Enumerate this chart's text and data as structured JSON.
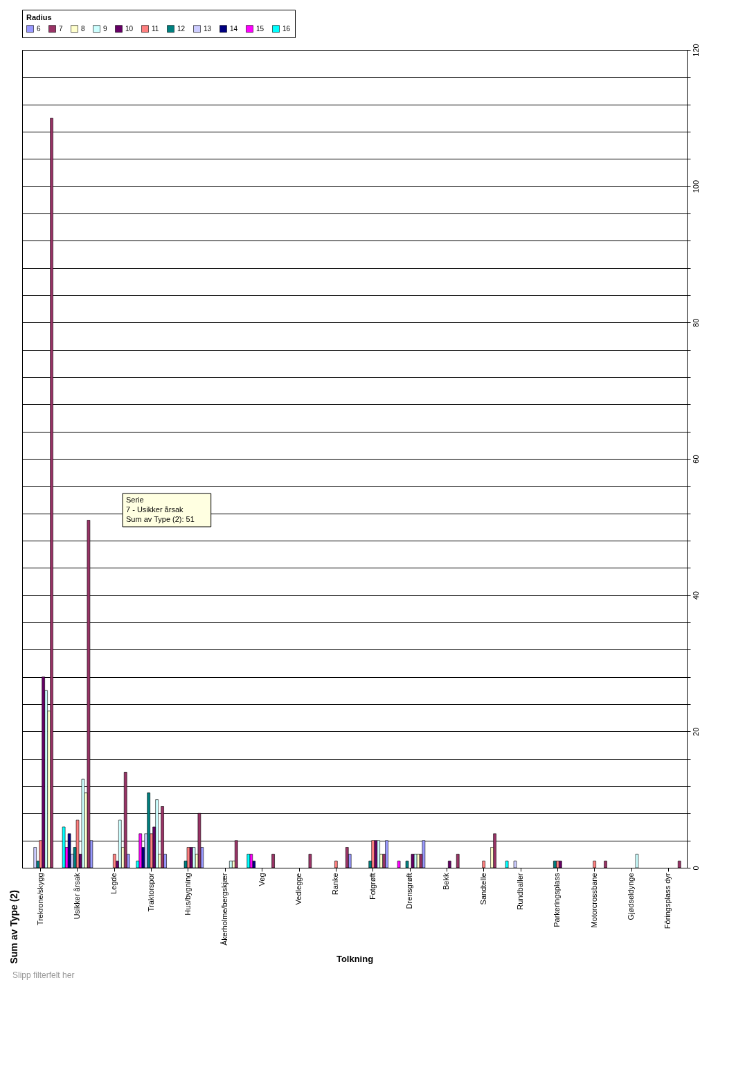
{
  "chart_data": {
    "type": "bar",
    "title": "Sum av Type (2)",
    "xlabel": "Tolkning",
    "legend_title": "Radius",
    "legend": "top",
    "grid": "y",
    "categories": [
      "Trekrone/skygg",
      "Usikker årsak",
      "Legde",
      "Traktorspor",
      "Hus/bygning",
      "Åkerholme/bergskjær",
      "Veg",
      "Vedlegge",
      "Ranke",
      "Fotgrøft",
      "Drensgrøft",
      "Bekk",
      "Sandtelle",
      "Rundballer",
      "Parkeringsplass",
      "Motorcrossbane",
      "Gjødseldynge",
      "Fôringsplass dyr"
    ],
    "ylim": [
      0,
      120
    ],
    "yticks": [
      0,
      {
        "value": 4,
        "label": null
      },
      {
        "value": 8,
        "label": null
      },
      {
        "value": 12,
        "label": null
      },
      {
        "value": 16,
        "label": null
      },
      20,
      {
        "value": 24,
        "label": null
      },
      {
        "value": 28,
        "label": null
      },
      {
        "value": 32,
        "label": null
      },
      {
        "value": 36,
        "label": null
      },
      40,
      {
        "value": 44,
        "label": null
      },
      {
        "value": 48,
        "label": null
      },
      {
        "value": 52,
        "label": null
      },
      {
        "value": 56,
        "label": null
      },
      60,
      {
        "value": 64,
        "label": null
      },
      {
        "value": 68,
        "label": null
      },
      {
        "value": 72,
        "label": null
      },
      {
        "value": 76,
        "label": null
      },
      80,
      {
        "value": 84,
        "label": null
      },
      {
        "value": 88,
        "label": null
      },
      {
        "value": 92,
        "label": null
      },
      {
        "value": 96,
        "label": null
      },
      100,
      {
        "value": 104,
        "label": null
      },
      {
        "value": 108,
        "label": null
      },
      {
        "value": 112,
        "label": null
      },
      {
        "value": 116,
        "label": null
      },
      120
    ],
    "series": [
      {
        "name": "6",
        "color": "#9999ff",
        "values": [
          null,
          4,
          2,
          2,
          3,
          null,
          null,
          null,
          2,
          4,
          4,
          null,
          null,
          null,
          null,
          null,
          null,
          null
        ]
      },
      {
        "name": "7",
        "color": "#993366",
        "values": [
          110,
          51,
          14,
          9,
          8,
          4,
          2,
          2,
          3,
          2,
          2,
          2,
          5,
          null,
          null,
          1,
          null,
          1
        ]
      },
      {
        "name": "8",
        "color": "#ffffcc",
        "values": [
          23,
          11,
          3,
          2,
          2,
          1,
          null,
          null,
          null,
          2,
          2,
          null,
          3,
          null,
          null,
          null,
          null,
          null
        ]
      },
      {
        "name": "9",
        "color": "#ccffff",
        "values": [
          26,
          13,
          7,
          10,
          3,
          1,
          null,
          null,
          null,
          4,
          2,
          null,
          null,
          null,
          null,
          null,
          2,
          null
        ]
      },
      {
        "name": "10",
        "color": "#660066",
        "values": [
          28,
          2,
          1,
          6,
          3,
          null,
          null,
          null,
          null,
          4,
          2,
          1,
          null,
          null,
          1,
          null,
          null,
          null
        ]
      },
      {
        "name": "11",
        "color": "#ff8080",
        "values": [
          4,
          7,
          2,
          5,
          3,
          null,
          null,
          null,
          1,
          4,
          null,
          null,
          1,
          null,
          1,
          1,
          null,
          null
        ]
      },
      {
        "name": "12",
        "color": "#008080",
        "values": [
          1,
          3,
          null,
          11,
          1,
          null,
          null,
          null,
          null,
          1,
          1,
          null,
          null,
          null,
          1,
          null,
          null,
          null
        ]
      },
      {
        "name": "13",
        "color": "#ccccff",
        "values": [
          3,
          2,
          null,
          5,
          null,
          null,
          null,
          null,
          null,
          null,
          null,
          null,
          null,
          1,
          null,
          null,
          null,
          null
        ]
      },
      {
        "name": "14",
        "color": "#000080",
        "values": [
          null,
          5,
          null,
          3,
          null,
          null,
          1,
          null,
          null,
          null,
          null,
          null,
          null,
          null,
          null,
          null,
          null,
          null
        ]
      },
      {
        "name": "15",
        "color": "#ff00ff",
        "values": [
          null,
          3,
          null,
          5,
          null,
          null,
          2,
          null,
          null,
          null,
          1,
          null,
          null,
          null,
          null,
          null,
          null,
          null
        ]
      },
      {
        "name": "16",
        "color": "#00ffff",
        "values": [
          null,
          6,
          null,
          1,
          null,
          null,
          2,
          null,
          null,
          null,
          null,
          null,
          null,
          1,
          null,
          null,
          null,
          null
        ]
      }
    ],
    "annotations": [
      "Serie\n7 - Usikker årsak\nSum av Type (2): 51",
      "Slipp filterfelt her"
    ]
  }
}
